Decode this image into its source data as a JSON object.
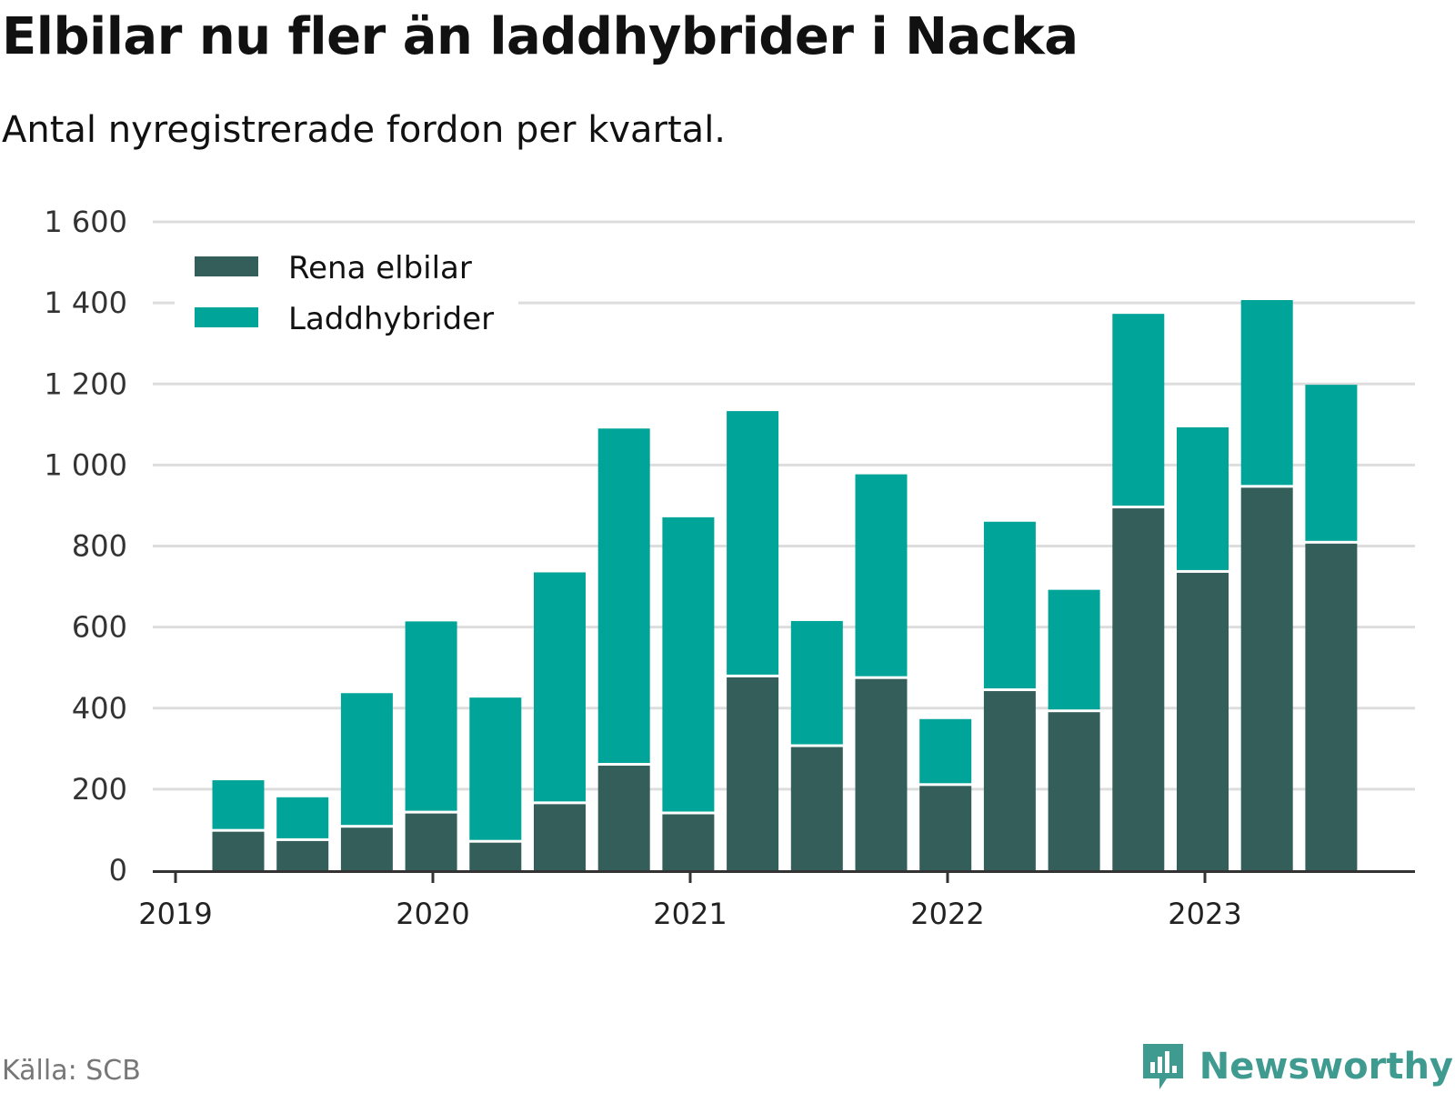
{
  "title": "Elbilar nu fler än laddhybrider i Nacka",
  "subtitle": "Antal nyregistrerade fordon per kvartal.",
  "source": "Källa: SCB",
  "brand": "Newsworthy",
  "colors": {
    "rena_elbilar": "#335e5a",
    "laddhybrider": "#00a499",
    "grid": "#dddddd",
    "axis": "#333333",
    "brand": "#3f9a90"
  },
  "chart_data": {
    "type": "bar",
    "stacked": true,
    "title": "Elbilar nu fler än laddhybrider i Nacka",
    "subtitle": "Antal nyregistrerade fordon per kvartal.",
    "xlabel": "",
    "ylabel": "",
    "ylim": [
      0,
      1600
    ],
    "grid": true,
    "legend_position": "top-left",
    "y_ticks": [
      {
        "value": 0,
        "label": "0"
      },
      {
        "value": 200,
        "label": "200"
      },
      {
        "value": 400,
        "label": "400"
      },
      {
        "value": 600,
        "label": "600"
      },
      {
        "value": 800,
        "label": "800"
      },
      {
        "value": 1000,
        "label": "1 000"
      },
      {
        "value": 1200,
        "label": "1 200"
      },
      {
        "value": 1400,
        "label": "1 400"
      },
      {
        "value": 1600,
        "label": "1 600"
      }
    ],
    "x_ticks": [
      "2019",
      "2020",
      "2021",
      "2022",
      "2023"
    ],
    "categories": [
      "2019 Q2",
      "2019 Q3",
      "2019 Q4",
      "2020 Q1",
      "2020 Q2",
      "2020 Q3",
      "2020 Q4",
      "2021 Q1",
      "2021 Q2",
      "2021 Q3",
      "2021 Q4",
      "2022 Q1",
      "2022 Q2",
      "2022 Q3",
      "2022 Q4",
      "2023 Q1",
      "2023 Q2",
      "2023 Q3"
    ],
    "series": [
      {
        "name": "Rena elbilar",
        "values": [
          95,
          72,
          105,
          140,
          68,
          163,
          258,
          138,
          476,
          304,
          472,
          208,
          442,
          390,
          893,
          734,
          944,
          806
        ]
      },
      {
        "name": "Laddhybrider",
        "values": [
          127,
          108,
          332,
          474,
          358,
          572,
          832,
          733,
          657,
          311,
          505,
          165,
          418,
          302,
          480,
          359,
          463,
          392
        ]
      }
    ]
  }
}
